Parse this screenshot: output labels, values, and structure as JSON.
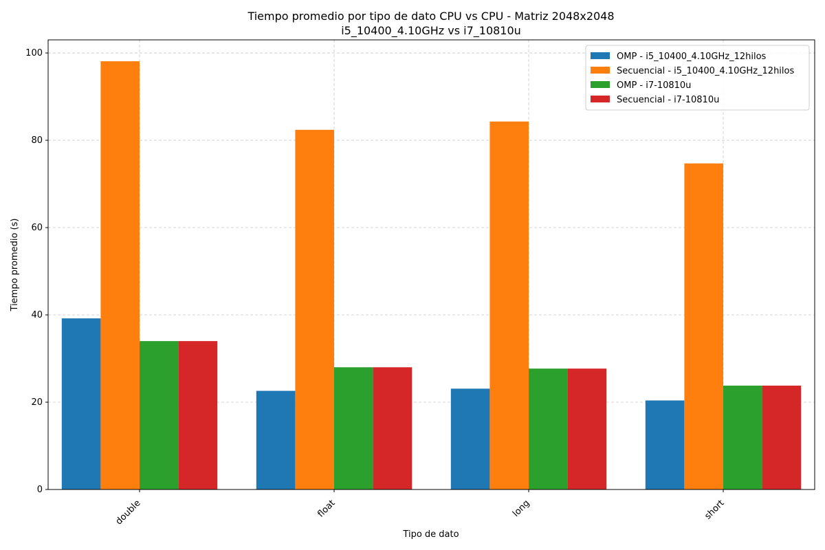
{
  "chart_data": {
    "type": "bar",
    "title": "Tiempo promedio por tipo de dato CPU vs CPU - Matriz 2048x2048",
    "subtitle": "i5_10400_4.10GHz vs i7_10810u",
    "xlabel": "Tipo de dato",
    "ylabel": "Tiempo promedio (s)",
    "categories": [
      "double",
      "float",
      "long",
      "short"
    ],
    "ylim": [
      0,
      103
    ],
    "yticks": [
      0,
      20,
      40,
      60,
      80,
      100
    ],
    "grid": true,
    "legend_position": "top-right",
    "series": [
      {
        "name": "OMP - i5_10400_4.10GHz_12hilos",
        "color": "#1f77b4",
        "values": [
          39.2,
          22.6,
          23.1,
          20.4
        ]
      },
      {
        "name": "Secuencial - i5_10400_4.10GHz_12hilos",
        "color": "#ff7f0e",
        "values": [
          98.1,
          82.4,
          84.3,
          74.7
        ]
      },
      {
        "name": "OMP - i7-10810u",
        "color": "#2ca02c",
        "values": [
          34.0,
          28.0,
          27.7,
          23.8
        ]
      },
      {
        "name": "Secuencial - i7-10810u",
        "color": "#d62728",
        "values": [
          34.0,
          28.0,
          27.7,
          23.8
        ]
      }
    ]
  }
}
